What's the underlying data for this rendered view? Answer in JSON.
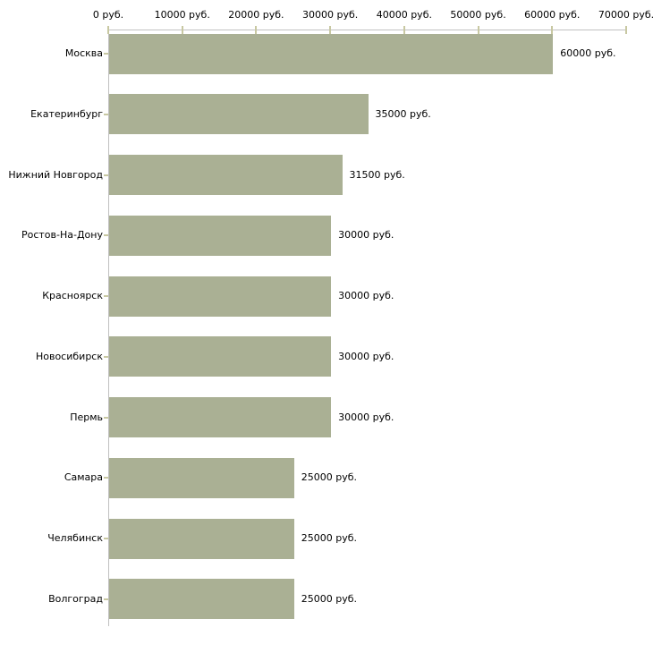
{
  "chart_data": {
    "type": "bar",
    "orientation": "horizontal",
    "title": "",
    "xlabel": "",
    "ylabel": "",
    "unit": "руб.",
    "categories": [
      "Москва",
      "Екатеринбург",
      "Нижний Новгород",
      "Ростов-На-Дону",
      "Красноярск",
      "Новосибирск",
      "Пермь",
      "Самара",
      "Челябинск",
      "Волгоград"
    ],
    "values": [
      60000,
      35000,
      31500,
      30000,
      30000,
      30000,
      30000,
      25000,
      25000,
      25000
    ],
    "value_labels": [
      "60000 руб.",
      "35000 руб.",
      "31500 руб.",
      "30000 руб.",
      "30000 руб.",
      "30000 руб.",
      "30000 руб.",
      "25000 руб.",
      "25000 руб.",
      "25000 руб."
    ],
    "x_ticks": [
      0,
      10000,
      20000,
      30000,
      40000,
      50000,
      60000,
      70000
    ],
    "x_tick_labels": [
      "0 руб.",
      "10000 руб.",
      "20000 руб.",
      "30000 руб.",
      "40000 руб.",
      "50000 руб.",
      "60000 руб.",
      "70000 руб."
    ],
    "xlim": [
      0,
      70000
    ],
    "grid": "off",
    "legend": "none",
    "axis_position": "top",
    "colors": {
      "bar": "#aab094",
      "axis": "#c0c0c0",
      "tick": "#c8c8a2",
      "text": "#000000",
      "background": "#ffffff"
    }
  }
}
